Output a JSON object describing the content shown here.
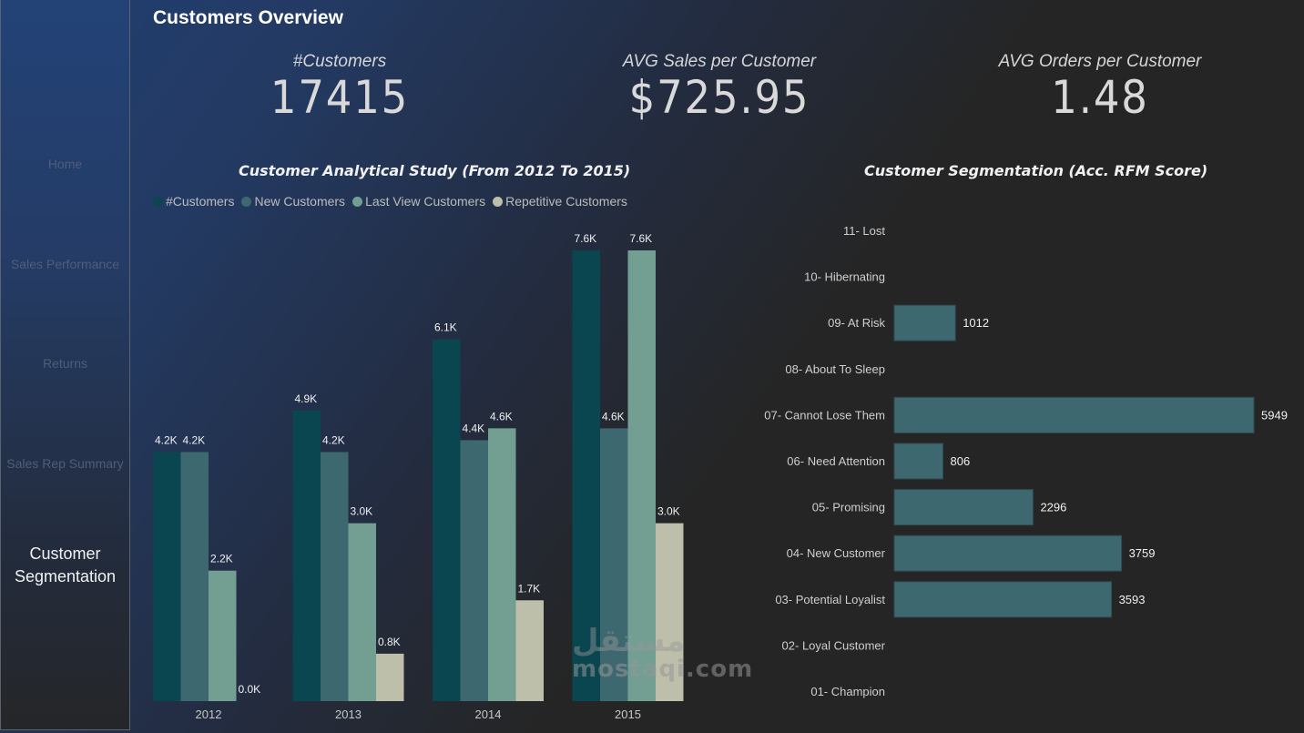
{
  "page": {
    "title": "Customers Overview"
  },
  "sidebar": {
    "items": [
      {
        "label": "Home",
        "active": false
      },
      {
        "label": "Sales Performance",
        "active": false
      },
      {
        "label": "Returns",
        "active": false
      },
      {
        "label": "Sales Rep Summary",
        "active": false
      },
      {
        "label": "Customer Segmentation",
        "active": true
      }
    ]
  },
  "kpis": [
    {
      "label": "#Customers",
      "value": "17415"
    },
    {
      "label": "AVG Sales per Customer",
      "value": "$725.95"
    },
    {
      "label": "AVG Orders per Customer",
      "value": "1.48"
    }
  ],
  "colors": {
    "customers": "#0a4650",
    "new_customers": "#3e6870",
    "last_view_customers": "#739f92",
    "repetitive_customers": "#bdbfab",
    "segment_bar": "#3e6870"
  },
  "watermark": {
    "arabic": "مستقل",
    "latin": "mostaqi.com"
  },
  "chart_data": [
    {
      "type": "bar",
      "title": "Customer Analytical Study (From 2012 To 2015)",
      "xlabel": "",
      "ylabel": "",
      "categories": [
        "2012",
        "2013",
        "2014",
        "2015"
      ],
      "legend_position": "top-left",
      "grid": false,
      "ylim": [
        0,
        7600
      ],
      "series": [
        {
          "name": "#Customers",
          "color": "#0a4650",
          "values": [
            4200,
            4900,
            6100,
            7600
          ],
          "labels": [
            "4.2K",
            "4.9K",
            "6.1K",
            "7.6K"
          ]
        },
        {
          "name": "New Customers",
          "color": "#3e6870",
          "values": [
            4200,
            4200,
            4400,
            4600
          ],
          "labels": [
            "4.2K",
            "4.2K",
            "4.4K",
            "4.6K"
          ]
        },
        {
          "name": "Last View Customers",
          "color": "#739f92",
          "values": [
            2200,
            3000,
            4600,
            7600
          ],
          "labels": [
            "2.2K",
            "3.0K",
            "4.6K",
            "7.6K"
          ]
        },
        {
          "name": "Repetitive Customers",
          "color": "#bdbfab",
          "values": [
            0,
            800,
            1700,
            3000
          ],
          "labels": [
            "0.0K",
            "0.8K",
            "1.7K",
            "3.0K"
          ]
        }
      ]
    },
    {
      "type": "bar",
      "orientation": "horizontal",
      "title": "Customer Segmentation (Acc. RFM Score)",
      "xlabel": "",
      "ylabel": "",
      "grid": false,
      "xlim": [
        0,
        5949
      ],
      "categories": [
        "11- Lost",
        "10- Hibernating",
        "09- At Risk",
        "08- About To Sleep",
        "07- Cannot Lose Them",
        "06- Need Attention",
        "05- Promising",
        "04- New Customer",
        "03- Potential Loyalist",
        "02- Loyal Customer",
        "01- Champion"
      ],
      "values": [
        null,
        null,
        1012,
        null,
        5949,
        806,
        2296,
        3759,
        3593,
        null,
        null
      ],
      "color": "#3e6870"
    }
  ]
}
